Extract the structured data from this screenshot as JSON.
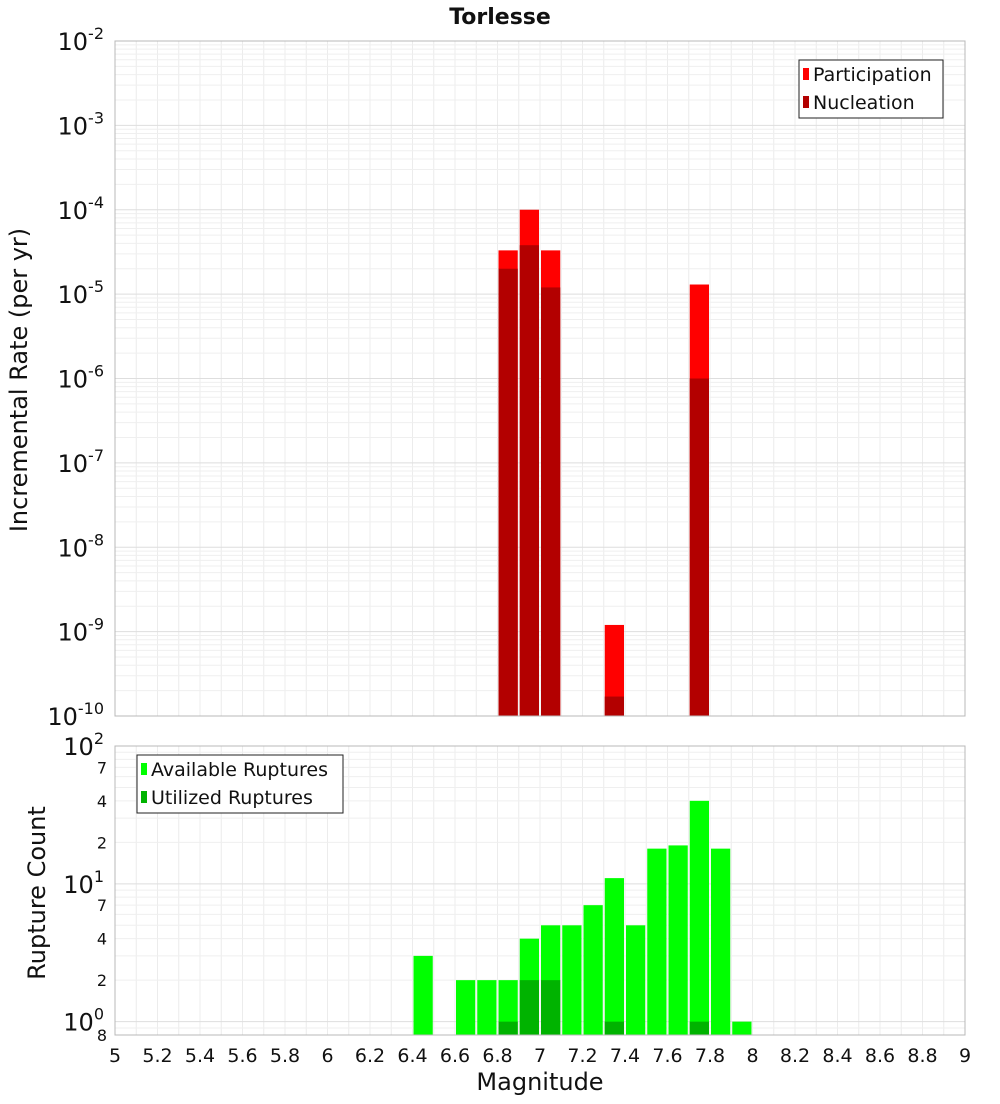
{
  "chart_data": [
    {
      "type": "bar",
      "title": "Torlesse",
      "xlabel": "",
      "ylabel": "Incremental Rate (per yr)",
      "yscale": "log",
      "ylim": [
        1e-10,
        0.01
      ],
      "xlim": [
        5,
        9
      ],
      "y_tick_labels": [
        {
          "value": 0.01,
          "base": "10",
          "exp": "-2"
        },
        {
          "value": 0.001,
          "base": "10",
          "exp": "-3"
        },
        {
          "value": 0.0001,
          "base": "10",
          "exp": "-4"
        },
        {
          "value": 1e-05,
          "base": "10",
          "exp": "-5"
        },
        {
          "value": 1e-06,
          "base": "10",
          "exp": "-6"
        },
        {
          "value": 1e-07,
          "base": "10",
          "exp": "-7"
        },
        {
          "value": 1e-08,
          "base": "10",
          "exp": "-8"
        },
        {
          "value": 1e-09,
          "base": "10",
          "exp": "-9"
        },
        {
          "value": 1e-10,
          "base": "10",
          "exp": "-10"
        }
      ],
      "grid": true,
      "legend": {
        "placement": "top-right",
        "entries": [
          {
            "label": "Participation",
            "color": "#ff0000"
          },
          {
            "label": "Nucleation",
            "color": "#b30000"
          }
        ]
      },
      "bar_width": 0.1,
      "series": [
        {
          "name": "Participation",
          "color": "#ff0000",
          "points": [
            {
              "x": 6.85,
              "y": 3.3e-05
            },
            {
              "x": 6.95,
              "y": 0.0001
            },
            {
              "x": 7.05,
              "y": 3.3e-05
            },
            {
              "x": 7.35,
              "y": 1.2e-09
            },
            {
              "x": 7.75,
              "y": 1.3e-05
            }
          ]
        },
        {
          "name": "Nucleation",
          "color": "#b30000",
          "points": [
            {
              "x": 6.85,
              "y": 2e-05
            },
            {
              "x": 6.95,
              "y": 3.8e-05
            },
            {
              "x": 7.05,
              "y": 1.2e-05
            },
            {
              "x": 7.35,
              "y": 1.7e-10
            },
            {
              "x": 7.75,
              "y": 1e-06
            }
          ]
        }
      ]
    },
    {
      "type": "bar",
      "title": "",
      "xlabel": "Magnitude",
      "ylabel": "Rupture Count",
      "yscale": "log",
      "ylim": [
        0.8,
        100
      ],
      "xlim": [
        5,
        9
      ],
      "x_ticks": [
        "5",
        "5.2",
        "5.4",
        "5.6",
        "5.8",
        "6",
        "6.2",
        "6.4",
        "6.6",
        "6.8",
        "7",
        "7.2",
        "7.4",
        "7.6",
        "7.8",
        "8",
        "8.2",
        "8.4",
        "8.6",
        "8.8",
        "9"
      ],
      "y_tick_labels": [
        {
          "value": 100,
          "base": "10",
          "exp": "2",
          "major": true
        },
        {
          "value": 70,
          "label": "7"
        },
        {
          "value": 40,
          "label": "4"
        },
        {
          "value": 20,
          "label": "2"
        },
        {
          "value": 10,
          "base": "10",
          "exp": "1",
          "major": true
        },
        {
          "value": 7,
          "label": "7"
        },
        {
          "value": 4,
          "label": "4"
        },
        {
          "value": 2,
          "label": "2"
        },
        {
          "value": 1,
          "base": "10",
          "exp": "0",
          "major": true
        },
        {
          "value": 0.8,
          "label": "8"
        }
      ],
      "grid": true,
      "legend": {
        "placement": "top-left",
        "entries": [
          {
            "label": "Available Ruptures",
            "color": "#00ff00"
          },
          {
            "label": "Utilized Ruptures",
            "color": "#00b300"
          }
        ]
      },
      "bar_width": 0.1,
      "series": [
        {
          "name": "Available Ruptures",
          "color": "#00ff00",
          "points": [
            {
              "x": 6.45,
              "y": 3
            },
            {
              "x": 6.65,
              "y": 2
            },
            {
              "x": 6.75,
              "y": 2
            },
            {
              "x": 6.85,
              "y": 2
            },
            {
              "x": 6.95,
              "y": 4
            },
            {
              "x": 7.05,
              "y": 5
            },
            {
              "x": 7.15,
              "y": 5
            },
            {
              "x": 7.25,
              "y": 7
            },
            {
              "x": 7.35,
              "y": 11
            },
            {
              "x": 7.45,
              "y": 5
            },
            {
              "x": 7.55,
              "y": 18
            },
            {
              "x": 7.65,
              "y": 19
            },
            {
              "x": 7.75,
              "y": 40
            },
            {
              "x": 7.85,
              "y": 18
            },
            {
              "x": 7.95,
              "y": 1
            }
          ]
        },
        {
          "name": "Utilized Ruptures",
          "color": "#00b300",
          "points": [
            {
              "x": 6.85,
              "y": 1
            },
            {
              "x": 6.95,
              "y": 2
            },
            {
              "x": 7.05,
              "y": 2
            },
            {
              "x": 7.35,
              "y": 1
            },
            {
              "x": 7.75,
              "y": 1
            }
          ]
        }
      ]
    }
  ]
}
